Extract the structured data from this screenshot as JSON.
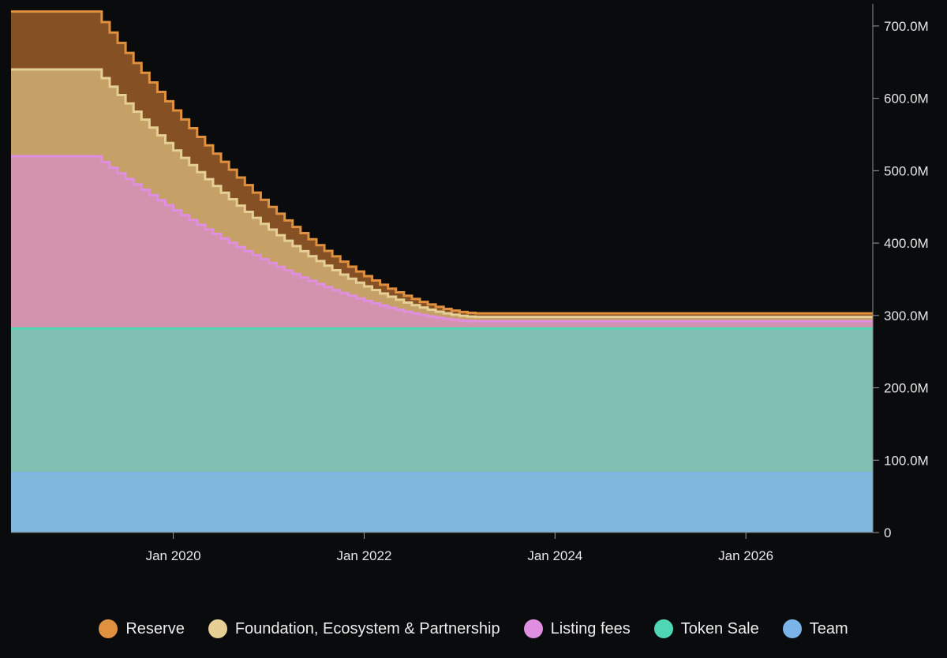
{
  "chart_data": {
    "type": "area",
    "stacked": true,
    "step": true,
    "y_axis_position": "right",
    "y_ticks": [
      {
        "value": 0,
        "label": "0"
      },
      {
        "value": 100,
        "label": "100.0M"
      },
      {
        "value": 200,
        "label": "200.0M"
      },
      {
        "value": 300,
        "label": "300.0M"
      },
      {
        "value": 400,
        "label": "400.0M"
      },
      {
        "value": 500,
        "label": "500.0M"
      },
      {
        "value": 600,
        "label": "600.0M"
      },
      {
        "value": 700,
        "label": "700.0M"
      }
    ],
    "y_range_millions": [
      0,
      725
    ],
    "x_range_years": [
      2018.3,
      2027.33
    ],
    "x_ticks": [
      {
        "value": 2020.0,
        "label": "Jan 2020"
      },
      {
        "value": 2022.0,
        "label": "Jan 2022"
      },
      {
        "value": 2024.0,
        "label": "Jan 2024"
      },
      {
        "value": 2026.0,
        "label": "Jan 2026"
      }
    ],
    "burn": {
      "start_year": 2019.25,
      "end_year": 2023.25,
      "steps_per_year": 12,
      "curve_power": 1.7
    },
    "series": [
      {
        "name": "Team",
        "color": "#7fb8dc",
        "line": "#7ab4e8",
        "start_value": 82,
        "end_value": 82
      },
      {
        "name": "Token Sale",
        "color": "#80bfb2",
        "line": "#4fd6b4",
        "start_value": 200,
        "end_value": 200
      },
      {
        "name": "Listing fees",
        "color": "#d393ae",
        "line": "#e08fe0",
        "start_value": 238,
        "end_value": 10
      },
      {
        "name": "Foundation, Ecosystem & Partnership",
        "color": "#c5a067",
        "line": "#e6cf95",
        "start_value": 120,
        "end_value": 6
      },
      {
        "name": "Reserve",
        "color": "#845024",
        "line": "#e0913f",
        "start_value": 80,
        "end_value": 5
      }
    ],
    "legend": [
      {
        "name": "Reserve",
        "color": "#e0913f"
      },
      {
        "name": "Foundation, Ecosystem & Partnership",
        "color": "#e6cf95"
      },
      {
        "name": "Listing fees",
        "color": "#e08fe0"
      },
      {
        "name": "Token Sale",
        "color": "#4fd6b4"
      },
      {
        "name": "Team",
        "color": "#7ab4e8"
      }
    ],
    "legend_position": "bottom-center"
  }
}
